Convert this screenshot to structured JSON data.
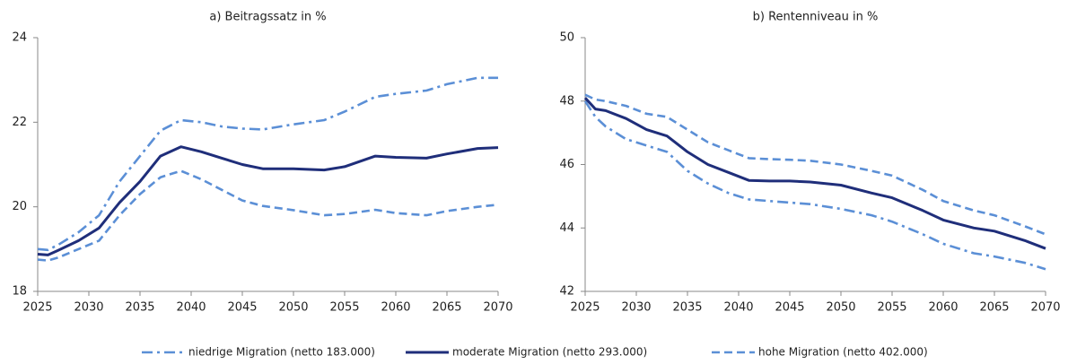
{
  "chart_data": [
    {
      "type": "line",
      "title": "a) Beitragssatz in %",
      "x": [
        2025,
        2026,
        2027,
        2029,
        2031,
        2033,
        2035,
        2037,
        2039,
        2041,
        2043,
        2045,
        2047,
        2050,
        2053,
        2055,
        2058,
        2060,
        2063,
        2065,
        2068,
        2070
      ],
      "xlim": [
        2025,
        2070
      ],
      "xticks": [
        2025,
        2030,
        2035,
        2040,
        2045,
        2050,
        2055,
        2060,
        2065,
        2070
      ],
      "ylim": [
        18,
        24
      ],
      "yticks": [
        18,
        20,
        22,
        24
      ],
      "grid": false,
      "series": [
        {
          "name": "niedrige Migration (netto 183.000)",
          "color": "#5b8fd6",
          "style": "dashdot",
          "values": [
            19.0,
            18.98,
            19.1,
            19.4,
            19.8,
            20.6,
            21.2,
            21.8,
            22.05,
            22.0,
            21.9,
            21.85,
            21.83,
            21.95,
            22.05,
            22.25,
            22.6,
            22.67,
            22.75,
            22.9,
            23.05,
            23.05
          ]
        },
        {
          "name": "moderate Migration (netto 293.000)",
          "color": "#1f2e7a",
          "style": "solid",
          "values": [
            18.88,
            18.86,
            18.97,
            19.2,
            19.5,
            20.1,
            20.6,
            21.2,
            21.42,
            21.3,
            21.15,
            21.0,
            20.9,
            20.9,
            20.87,
            20.95,
            21.2,
            21.17,
            21.15,
            21.25,
            21.38,
            21.4
          ]
        },
        {
          "name": "hohe Migration (netto 402.000)",
          "color": "#5b8fd6",
          "style": "dashed",
          "values": [
            18.75,
            18.73,
            18.8,
            19.0,
            19.2,
            19.8,
            20.3,
            20.7,
            20.85,
            20.65,
            20.4,
            20.15,
            20.02,
            19.92,
            19.8,
            19.83,
            19.93,
            19.85,
            19.8,
            19.9,
            20.0,
            20.05
          ]
        }
      ]
    },
    {
      "type": "line",
      "title": "b) Rentenniveau in %",
      "x": [
        2025,
        2026,
        2027,
        2029,
        2031,
        2033,
        2035,
        2037,
        2039,
        2041,
        2043,
        2045,
        2047,
        2050,
        2053,
        2055,
        2058,
        2060,
        2063,
        2065,
        2068,
        2070
      ],
      "xlim": [
        2025,
        2070
      ],
      "xticks": [
        2025,
        2030,
        2035,
        2040,
        2045,
        2050,
        2055,
        2060,
        2065,
        2070
      ],
      "ylim": [
        42,
        50
      ],
      "yticks": [
        42,
        44,
        46,
        48,
        50
      ],
      "grid": false,
      "series": [
        {
          "name": "niedrige Migration (netto 183.000)",
          "color": "#5b8fd6",
          "style": "dashdot",
          "values": [
            48.0,
            47.5,
            47.2,
            46.8,
            46.6,
            46.4,
            45.8,
            45.4,
            45.1,
            44.9,
            44.85,
            44.8,
            44.75,
            44.6,
            44.4,
            44.2,
            43.8,
            43.5,
            43.2,
            43.1,
            42.9,
            42.7
          ]
        },
        {
          "name": "moderate Migration (netto 293.000)",
          "color": "#1f2e7a",
          "style": "solid",
          "values": [
            48.1,
            47.75,
            47.7,
            47.45,
            47.1,
            46.9,
            46.4,
            46.0,
            45.75,
            45.5,
            45.48,
            45.48,
            45.45,
            45.35,
            45.1,
            44.95,
            44.55,
            44.25,
            44.0,
            43.9,
            43.6,
            43.35
          ]
        },
        {
          "name": "hohe Migration (netto 402.000)",
          "color": "#5b8fd6",
          "style": "dashed",
          "values": [
            48.2,
            48.05,
            48.0,
            47.85,
            47.6,
            47.5,
            47.1,
            46.7,
            46.45,
            46.2,
            46.17,
            46.15,
            46.12,
            46.0,
            45.8,
            45.65,
            45.2,
            44.85,
            44.55,
            44.4,
            44.05,
            43.8
          ]
        }
      ]
    }
  ]
}
